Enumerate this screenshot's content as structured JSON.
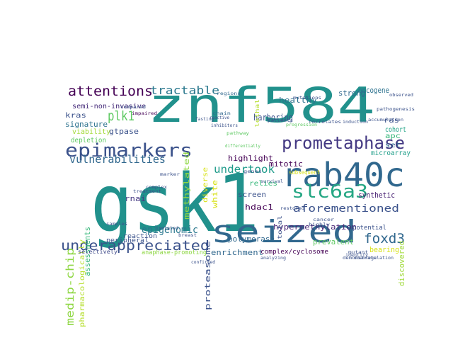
{
  "word_cloud": {
    "words": [
      {
        "text": "gsk1",
        "color": "#21918c"
      },
      {
        "text": "znf584",
        "color": "#21918c"
      },
      {
        "text": "seized",
        "color": "#31688e"
      },
      {
        "text": "rab40c",
        "color": "#31688e"
      },
      {
        "text": "epimarkers",
        "color": "#3b528b"
      },
      {
        "text": "prometaphase",
        "color": "#443983"
      },
      {
        "text": "slc6a3",
        "color": "#26a784"
      },
      {
        "text": "underappreciated",
        "color": "#3b528b"
      },
      {
        "text": "attentions",
        "color": "#440154"
      },
      {
        "text": "tractable",
        "color": "#2a788e"
      },
      {
        "text": "vulnerabilities",
        "color": "#31688e"
      },
      {
        "text": "foxd3",
        "color": "#31688e"
      },
      {
        "text": "aforementioned",
        "color": "#3b528b"
      },
      {
        "text": "medip-chip",
        "color": "#8fd744"
      },
      {
        "text": "undertook",
        "color": "#1e9b8a"
      },
      {
        "text": "plk1",
        "color": "#5ec962"
      },
      {
        "text": "epigenomic",
        "color": "#2a788e"
      },
      {
        "text": "harboring",
        "color": "#3b528b"
      },
      {
        "text": "semi-non-invasive",
        "color": "#472d7b"
      },
      {
        "text": "kras",
        "color": "#3b528b"
      },
      {
        "text": "signature",
        "color": "#2c728e"
      },
      {
        "text": "gtpase",
        "color": "#3b528b"
      },
      {
        "text": "viability",
        "color": "#a2da37"
      },
      {
        "text": "depletion",
        "color": "#5ec962"
      },
      {
        "text": "peripheral",
        "color": "#3b528b"
      },
      {
        "text": "pharmacologically",
        "color": "#b5de2b"
      },
      {
        "text": "assessments",
        "color": "#35b779"
      },
      {
        "text": "rnai",
        "color": "#443983"
      },
      {
        "text": "reaction",
        "color": "#3b528b"
      },
      {
        "text": "selectively",
        "color": "#3e4989"
      },
      {
        "text": "anaphase-promoting",
        "color": "#8fd744"
      },
      {
        "text": "proteasome",
        "color": "#3b528b"
      },
      {
        "text": "polymerase",
        "color": "#31688e"
      },
      {
        "text": "enrichment",
        "color": "#31688e"
      },
      {
        "text": "complex/cyclosome",
        "color": "#440154"
      },
      {
        "text": "hypermethylation",
        "color": "#482475"
      },
      {
        "text": "prevalent",
        "color": "#5ec962"
      },
      {
        "text": "bearing",
        "color": "#d8e219"
      },
      {
        "text": "discovered",
        "color": "#a0da39"
      },
      {
        "text": "synthetic",
        "color": "#482173"
      },
      {
        "text": "potential",
        "color": "#3b528b"
      },
      {
        "text": "hdac1",
        "color": "#440154"
      },
      {
        "text": "screen",
        "color": "#3b528b"
      },
      {
        "text": "relies",
        "color": "#35b779"
      },
      {
        "text": "mitotic",
        "color": "#440154"
      },
      {
        "text": "highlight",
        "color": "#440154"
      },
      {
        "text": "methylated",
        "color": "#8fd744"
      },
      {
        "text": "diverse",
        "color": "#d8e219"
      },
      {
        "text": "white",
        "color": "#d8e219"
      },
      {
        "text": "healthy",
        "color": "#2c728e"
      },
      {
        "text": "strong",
        "color": "#31688e"
      },
      {
        "text": "oncogene",
        "color": "#2c728e"
      },
      {
        "text": "cohort",
        "color": "#20a386"
      },
      {
        "text": "apc",
        "color": "#35b779"
      },
      {
        "text": "ras",
        "color": "#3b528b"
      },
      {
        "text": "set",
        "color": "#31688e"
      },
      {
        "text": "microarray",
        "color": "#1f9e89"
      },
      {
        "text": "lethal",
        "color": "#b5de2b"
      },
      {
        "text": "total",
        "color": "#3b528b"
      },
      {
        "text": "subsequent",
        "color": "#d8e219"
      },
      {
        "text": "regions",
        "color": "#31688e"
      },
      {
        "text": "chain",
        "color": "#31688e"
      },
      {
        "text": "pathway",
        "color": "#5ec962"
      },
      {
        "text": "patients",
        "color": "#3b528b"
      },
      {
        "text": "inhibitors",
        "color": "#3b528b"
      },
      {
        "text": "compared",
        "color": "#3b528b"
      },
      {
        "text": "impaired",
        "color": "#440154"
      },
      {
        "text": "fasting",
        "color": "#3b528b"
      },
      {
        "text": "genes",
        "color": "#3b528b"
      },
      {
        "text": "treatment",
        "color": "#3b528b"
      },
      {
        "text": "isolated",
        "color": "#3b528b"
      },
      {
        "text": "breast",
        "color": "#3b528b"
      },
      {
        "text": "complex",
        "color": "#3b528b"
      },
      {
        "text": "mutant",
        "color": "#3b528b"
      },
      {
        "text": "identify",
        "color": "#3b528b"
      },
      {
        "text": "accumulation",
        "color": "#3b528b"
      },
      {
        "text": "pathogenesis",
        "color": "#3b528b"
      },
      {
        "text": "observed",
        "color": "#3b528b"
      },
      {
        "text": "demonstrate",
        "color": "#3b528b"
      },
      {
        "text": "downregulation",
        "color": "#3b528b"
      },
      {
        "text": "correlates",
        "color": "#3b528b"
      },
      {
        "text": "mutations",
        "color": "#3b528b"
      },
      {
        "text": "highly",
        "color": "#3b528b"
      },
      {
        "text": "cancer",
        "color": "#3b528b"
      },
      {
        "text": "differentially",
        "color": "#5ec962"
      },
      {
        "text": "reactive",
        "color": "#3b528b"
      },
      {
        "text": "samples",
        "color": "#3b528b"
      },
      {
        "text": "confirmed",
        "color": "#3b528b"
      },
      {
        "text": "analyzing",
        "color": "#3b528b"
      },
      {
        "text": "progression",
        "color": "#5ec962"
      },
      {
        "text": "induction",
        "color": "#3b528b"
      },
      {
        "text": "restored",
        "color": "#3b528b"
      },
      {
        "text": "survival",
        "color": "#3b528b"
      },
      {
        "text": "marker",
        "color": "#3b528b"
      }
    ]
  }
}
